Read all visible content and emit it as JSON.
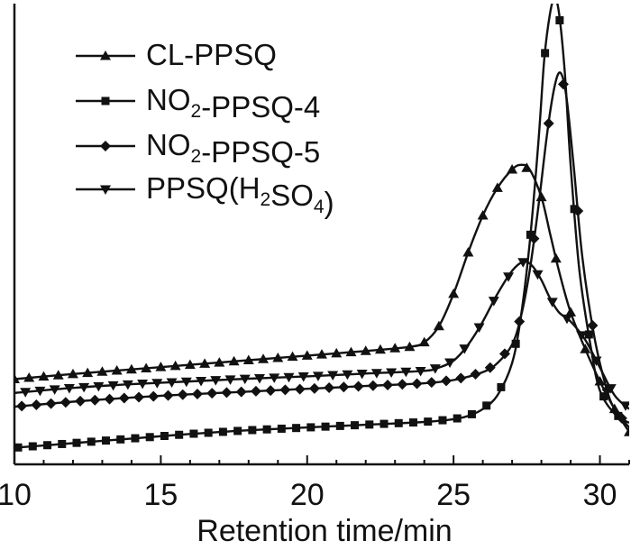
{
  "chart_data": {
    "type": "line",
    "title": "",
    "xlabel": "Retention time/min",
    "ylabel": "",
    "xlim": [
      10,
      31
    ],
    "ylim": [
      0,
      100
    ],
    "xticks": [
      10,
      15,
      20,
      25,
      30
    ],
    "y_ticks_shown": false,
    "grid": false,
    "legend_position": "top-left",
    "series": [
      {
        "name": "CL-PPSQ",
        "label_parts": [
          {
            "t": "CL-PPSQ"
          }
        ],
        "marker": "triangle-up",
        "x": [
          10,
          12,
          14,
          16,
          18,
          20,
          22,
          23.5,
          24,
          24.5,
          25,
          25.5,
          26,
          26.5,
          27,
          27.3,
          27.6,
          28,
          28.3,
          28.6,
          29,
          29.5,
          30,
          30.5,
          31
        ],
        "y": [
          18.5,
          19.6,
          20.6,
          21.6,
          22.6,
          23.6,
          24.6,
          25.5,
          26.5,
          30,
          37,
          46,
          54,
          60,
          64,
          65,
          64,
          58,
          50,
          42,
          33,
          25,
          18,
          12,
          7
        ]
      },
      {
        "name": "NO2-PPSQ-4",
        "label_parts": [
          {
            "t": "NO"
          },
          {
            "t": "2",
            "sub": true
          },
          {
            "t": "-PPSQ-4"
          }
        ],
        "marker": "square",
        "x": [
          10,
          12,
          14,
          16,
          18,
          20,
          22,
          24,
          25,
          25.5,
          26,
          26.5,
          27,
          27.3,
          27.6,
          27.9,
          28.1,
          28.3,
          28.45,
          28.6,
          28.8,
          29,
          29.3,
          29.7,
          30,
          30.5,
          31
        ],
        "y": [
          3.6,
          4.6,
          5.6,
          6.6,
          7.4,
          8,
          8.6,
          9.2,
          9.8,
          10.5,
          12,
          15,
          22,
          32,
          48,
          70,
          88,
          98,
          101,
          98,
          85,
          65,
          42,
          25,
          16,
          11,
          9
        ]
      },
      {
        "name": "NO2-PPSQ-5",
        "label_parts": [
          {
            "t": "NO"
          },
          {
            "t": "2",
            "sub": true
          },
          {
            "t": "-PPSQ-5"
          }
        ],
        "marker": "diamond",
        "x": [
          10,
          12,
          14,
          16,
          18,
          20,
          22,
          24,
          25,
          26,
          26.5,
          27,
          27.3,
          27.6,
          27.9,
          28.2,
          28.45,
          28.65,
          28.85,
          29.1,
          29.4,
          29.8,
          30.2,
          30.5,
          31
        ],
        "y": [
          12.5,
          13.6,
          14.5,
          15.2,
          15.8,
          16.4,
          17,
          17.6,
          18.3,
          20,
          22,
          26,
          32,
          42,
          56,
          72,
          82,
          85,
          80,
          65,
          45,
          28,
          17,
          12,
          8
        ]
      },
      {
        "name": "PPSQ(H2SO4)",
        "label_parts": [
          {
            "t": "PPSQ(H"
          },
          {
            "t": "2",
            "sub": true
          },
          {
            "t": "SO"
          },
          {
            "t": "4",
            "sub": true
          },
          {
            "t": ")"
          }
        ],
        "marker": "triangle-down",
        "x": [
          10,
          12,
          14,
          16,
          18,
          20,
          22,
          24,
          24.5,
          25,
          25.5,
          26,
          26.5,
          27,
          27.4,
          27.7,
          28,
          28.3,
          28.6,
          29,
          29.5,
          30,
          30.5,
          31
        ],
        "y": [
          15.5,
          16.6,
          17.4,
          18,
          18.6,
          19.1,
          19.7,
          20.3,
          21,
          22.5,
          26,
          31,
          37,
          42,
          44,
          43,
          40,
          36,
          33,
          31,
          27,
          21,
          15,
          12
        ]
      }
    ]
  }
}
